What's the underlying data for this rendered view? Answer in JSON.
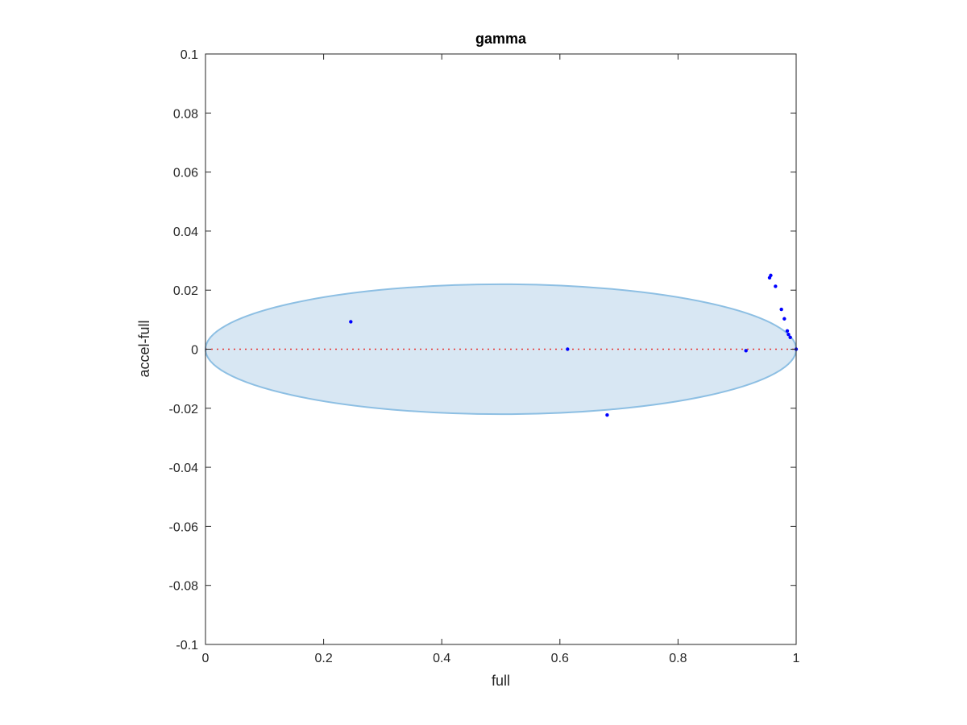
{
  "chart_data": {
    "type": "scatter",
    "title": "gamma",
    "xlabel": "full",
    "ylabel": "accel-full",
    "xlim": [
      0,
      1
    ],
    "ylim": [
      -0.1,
      0.1
    ],
    "xticks": [
      0,
      0.2,
      0.4,
      0.6,
      0.8,
      1
    ],
    "xtick_labels": [
      "0",
      "0.2",
      "0.4",
      "0.6",
      "0.8",
      "1"
    ],
    "yticks": [
      0.1,
      0.08,
      0.06,
      0.04,
      0.02,
      0,
      -0.02,
      -0.04,
      -0.06,
      -0.08,
      -0.1
    ],
    "ytick_labels": [
      "0.1",
      "0.08",
      "0.06",
      "0.04",
      "0.02",
      "0",
      "-0.02",
      "-0.04",
      "-0.06",
      "-0.08",
      "-0.1"
    ],
    "grid": false,
    "ellipse": {
      "center": [
        0.5,
        0
      ],
      "half_width": 0.5,
      "half_height": 0.022,
      "fill": "#d8e7f3",
      "stroke": "#8dbfe3"
    },
    "reference_line": {
      "y": 0,
      "color": "#e8312f",
      "style": "dotted"
    },
    "points_color": "#0000ff",
    "points": [
      {
        "x": 0.246,
        "y": 0.0093
      },
      {
        "x": 0.613,
        "y": 0.0
      },
      {
        "x": 0.68,
        "y": -0.0223
      },
      {
        "x": 0.915,
        "y": -0.0005
      },
      {
        "x": 0.955,
        "y": 0.0242
      },
      {
        "x": 0.957,
        "y": 0.025
      },
      {
        "x": 0.965,
        "y": 0.0213
      },
      {
        "x": 0.975,
        "y": 0.0135
      },
      {
        "x": 0.98,
        "y": 0.0103
      },
      {
        "x": 0.985,
        "y": 0.0062
      },
      {
        "x": 0.987,
        "y": 0.005
      },
      {
        "x": 0.99,
        "y": 0.004
      },
      {
        "x": 1.0,
        "y": 0.0
      }
    ]
  }
}
